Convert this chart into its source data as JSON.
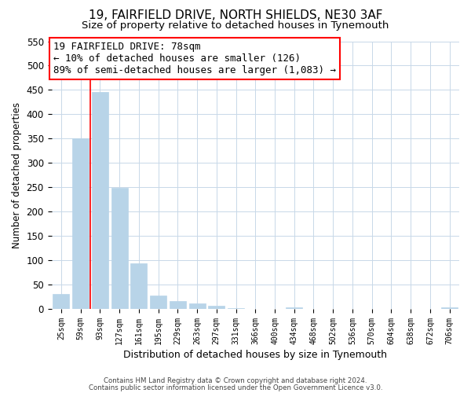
{
  "title": "19, FAIRFIELD DRIVE, NORTH SHIELDS, NE30 3AF",
  "subtitle": "Size of property relative to detached houses in Tynemouth",
  "xlabel": "Distribution of detached houses by size in Tynemouth",
  "ylabel": "Number of detached properties",
  "bar_labels": [
    "25sqm",
    "59sqm",
    "93sqm",
    "127sqm",
    "161sqm",
    "195sqm",
    "229sqm",
    "263sqm",
    "297sqm",
    "331sqm",
    "366sqm",
    "400sqm",
    "434sqm",
    "468sqm",
    "502sqm",
    "536sqm",
    "570sqm",
    "604sqm",
    "638sqm",
    "672sqm",
    "706sqm"
  ],
  "bar_values": [
    30,
    350,
    445,
    248,
    93,
    27,
    16,
    10,
    5,
    1,
    0,
    0,
    2,
    0,
    0,
    0,
    0,
    0,
    0,
    0,
    2
  ],
  "bar_color": "#b8d4e8",
  "grid_color": "#c8d8e8",
  "ylim": [
    0,
    550
  ],
  "yticks": [
    0,
    50,
    100,
    150,
    200,
    250,
    300,
    350,
    400,
    450,
    500,
    550
  ],
  "property_line_x": 1.5,
  "ann_line1": "19 FAIRFIELD DRIVE: 78sqm",
  "ann_line2": "← 10% of detached houses are smaller (126)",
  "ann_line3": "89% of semi-detached houses are larger (1,083) →",
  "footnote1": "Contains HM Land Registry data © Crown copyright and database right 2024.",
  "footnote2": "Contains public sector information licensed under the Open Government Licence v3.0.",
  "background_color": "#ffffff",
  "title_fontsize": 11,
  "subtitle_fontsize": 9.5,
  "ann_fontsize": 9,
  "xlabel_fontsize": 9,
  "ylabel_fontsize": 8.5
}
